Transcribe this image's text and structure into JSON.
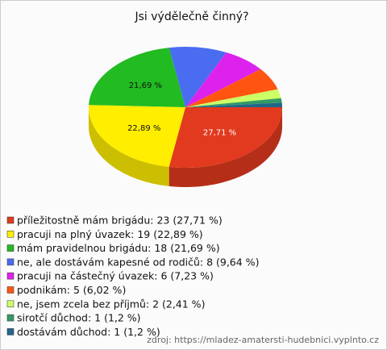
{
  "chart_data": {
    "type": "pie",
    "title": "Jsi výdělečně činný?",
    "categories": [
      "příležitostně mám brigádu: 23 (27,71 %)",
      "pracuji na plný úvazek: 19 (22,89 %)",
      "mám pravidelnou brigádu: 18 (21,69 %)",
      "ne, ale dostávám kapesné od rodičů: 8 (9,64 %)",
      "pracuji na částečný úvazek: 6 (7,23 %)",
      "podnikám: 5 (6,02 %)",
      "ne, jsem zcela bez příjmů: 2 (2,41 %)",
      "sirotčí důchod: 1 (1,2 %)",
      "dostávám důchod: 1 (1,2 %)"
    ],
    "values": [
      27.71,
      22.89,
      21.69,
      9.64,
      7.23,
      6.02,
      2.41,
      1.2,
      1.2
    ],
    "value_labels": [
      "27,71 %",
      "22,89 %",
      "21,69 %",
      null,
      null,
      null,
      null,
      null,
      null
    ],
    "colors": [
      "#e23a1e",
      "#ffee00",
      "#22bb22",
      "#4a6cf0",
      "#dd22ee",
      "#ff5511",
      "#ccff66",
      "#339966",
      "#226688"
    ],
    "source": "zdroj: https://mladez-amatersti-hudebnici.vyplnto.cz"
  }
}
